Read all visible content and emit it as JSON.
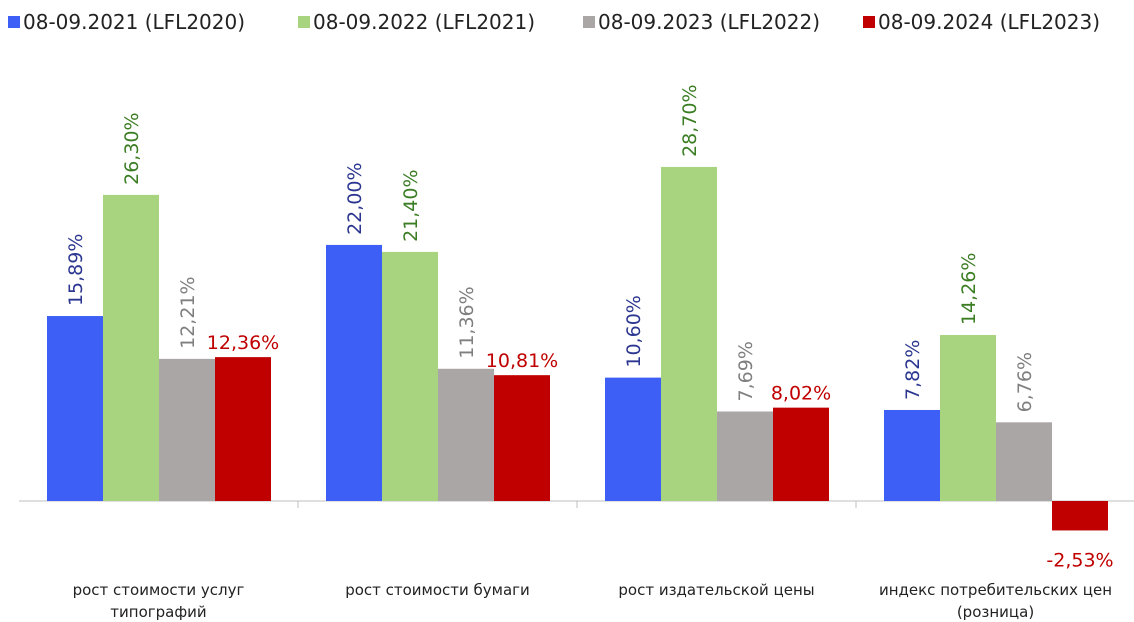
{
  "chart_data": {
    "type": "bar",
    "categories": [
      "рост стоимости услуг типографий",
      "рост стоимости бумаги",
      "рост издательской цены",
      "индекс потребительских цен (розница)"
    ],
    "series": [
      {
        "name": "08-09.2021 (LFL2020)",
        "color": "#3e5ff5",
        "label_color": "#2b3690",
        "label_orientation": "vertical",
        "values": [
          15.89,
          22.0,
          10.6,
          7.82
        ],
        "value_labels": [
          "15,89%",
          "22,00%",
          "10,60%",
          "7,82%"
        ]
      },
      {
        "name": "08-09.2022 (LFL2021)",
        "color": "#a9d47f",
        "label_color": "#3b7d23",
        "label_orientation": "vertical",
        "values": [
          26.3,
          21.4,
          28.7,
          14.26
        ],
        "value_labels": [
          "26,30%",
          "21,40%",
          "28,70%",
          "14,26%"
        ]
      },
      {
        "name": "08-09.2023 (LFL2022)",
        "color": "#aba6a6",
        "label_color": "#7f7f7f",
        "label_orientation": "vertical",
        "values": [
          12.21,
          11.36,
          7.69,
          6.76
        ],
        "value_labels": [
          "12,21%",
          "11,36%",
          "7,69%",
          "6,76%"
        ]
      },
      {
        "name": "08-09.2024 (LFL2023)",
        "color": "#c00000",
        "label_color": "#c00000",
        "label_orientation": "horizontal",
        "values": [
          12.36,
          10.81,
          8.02,
          -2.53
        ],
        "value_labels": [
          "12,36%",
          "10,81%",
          "8,02%",
          "-2,53%"
        ]
      }
    ]
  }
}
